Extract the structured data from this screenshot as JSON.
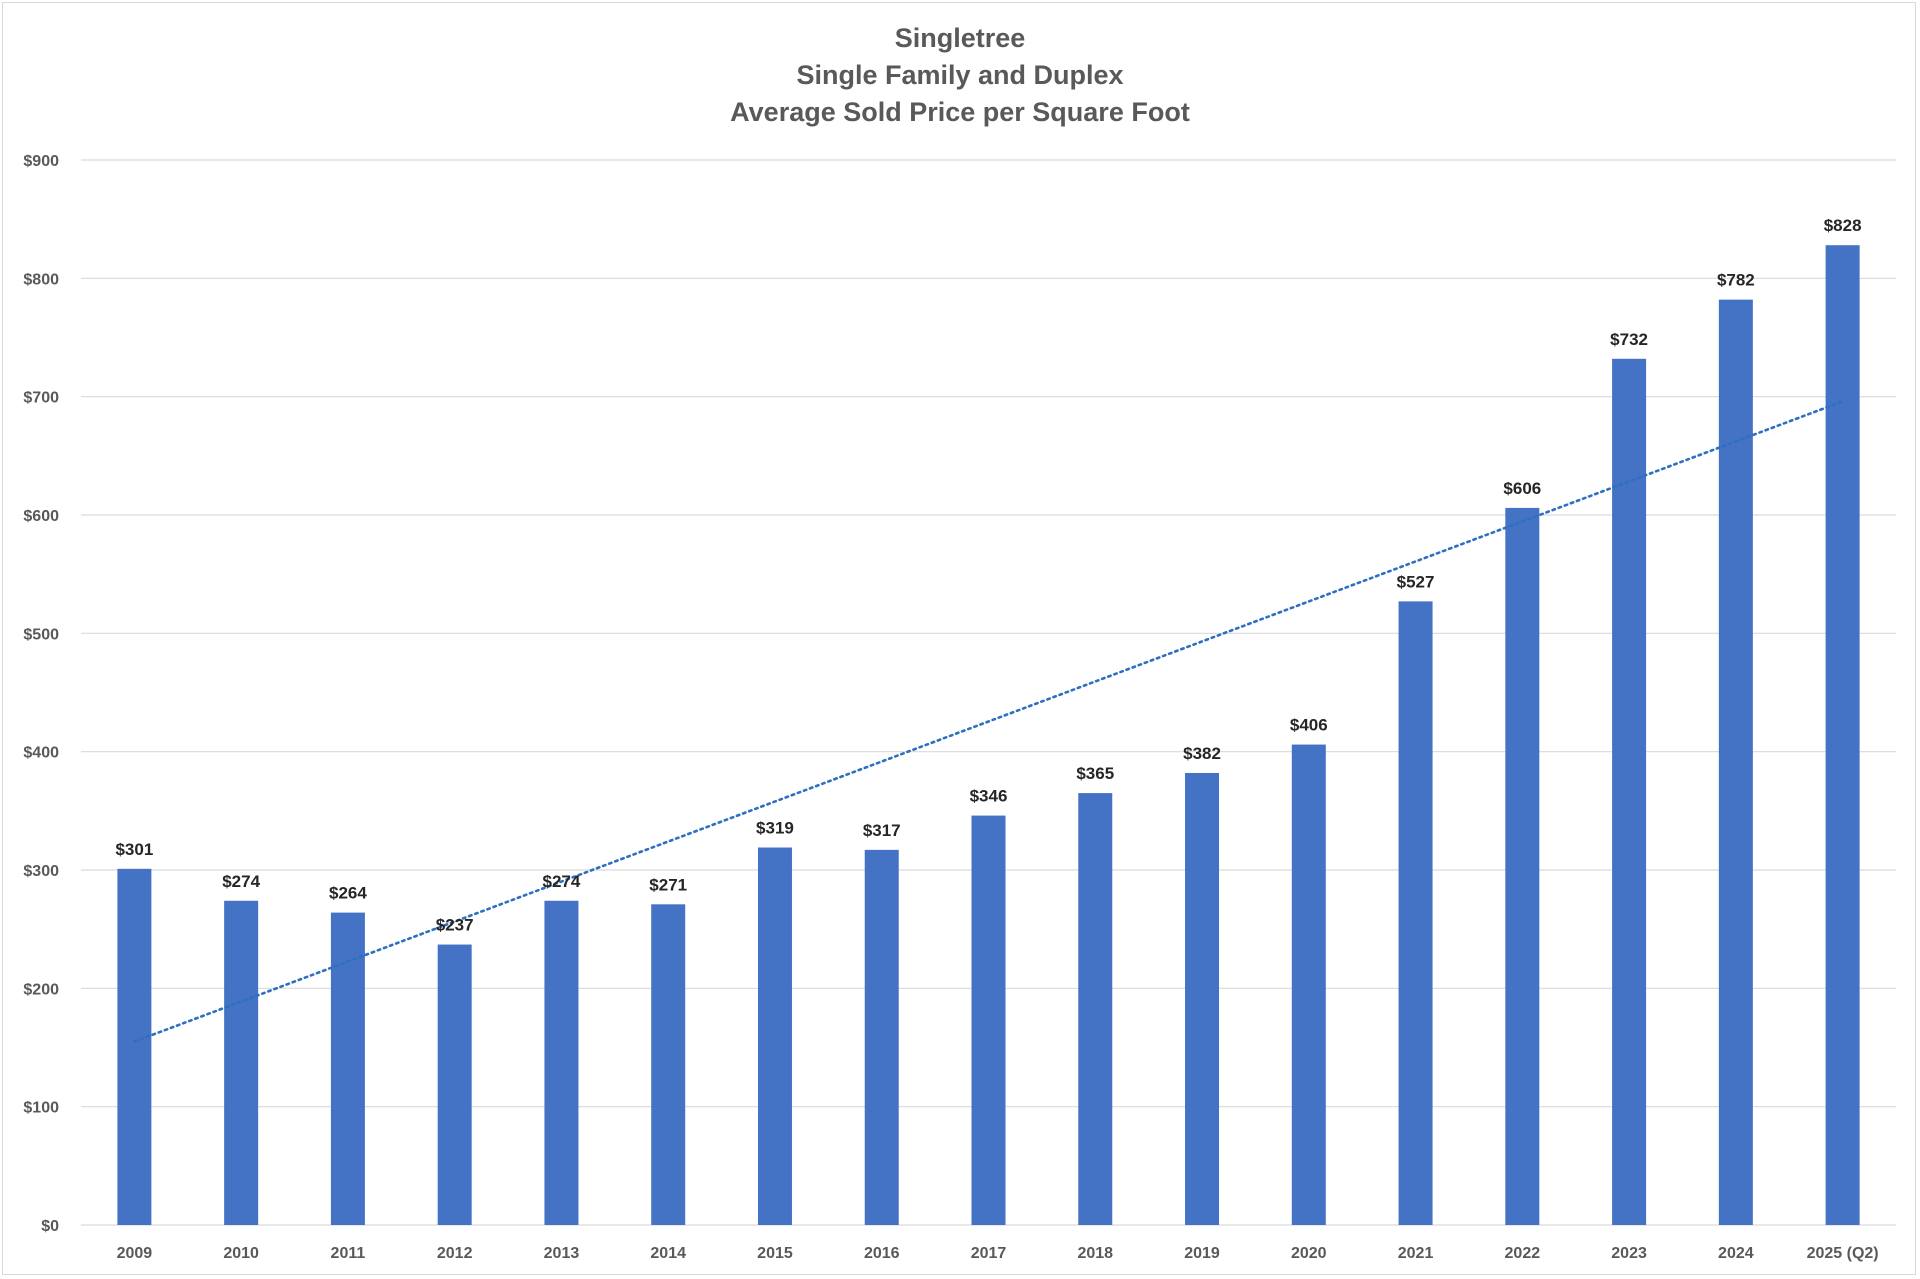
{
  "chart_data": {
    "type": "bar",
    "title": [
      "Singletree",
      "Single Family and Duplex",
      "Average Sold Price per Square Foot"
    ],
    "categories": [
      "2009",
      "2010",
      "2011",
      "2012",
      "2013",
      "2014",
      "2015",
      "2016",
      "2017",
      "2018",
      "2019",
      "2020",
      "2021",
      "2022",
      "2023",
      "2024",
      "2025 (Q2)"
    ],
    "values": [
      301,
      274,
      264,
      237,
      274,
      271,
      319,
      317,
      346,
      365,
      382,
      406,
      527,
      606,
      732,
      782,
      828
    ],
    "data_labels": [
      "$301",
      "$274",
      "$264",
      "$237",
      "$274",
      "$271",
      "$319",
      "$317",
      "$346",
      "$365",
      "$382",
      "$406",
      "$527",
      "$606",
      "$732",
      "$782",
      "$828"
    ],
    "ylim": [
      0,
      900
    ],
    "yticks": [
      0,
      100,
      200,
      300,
      400,
      500,
      600,
      700,
      800,
      900
    ],
    "ytick_labels": [
      "$0",
      "$100",
      "$200",
      "$300",
      "$400",
      "$500",
      "$600",
      "$700",
      "$800",
      "$900"
    ],
    "xlabel": "",
    "ylabel": "",
    "grid": true,
    "legend": "none",
    "trendline": {
      "type": "linear",
      "style": "dotted",
      "start_value": 155,
      "end_value": 696
    },
    "colors": {
      "bar": "#4472c4",
      "trendline": "#2e6fc0",
      "grid": "#d9d9d9",
      "axis_text": "#595959",
      "label_text": "#262626"
    }
  }
}
